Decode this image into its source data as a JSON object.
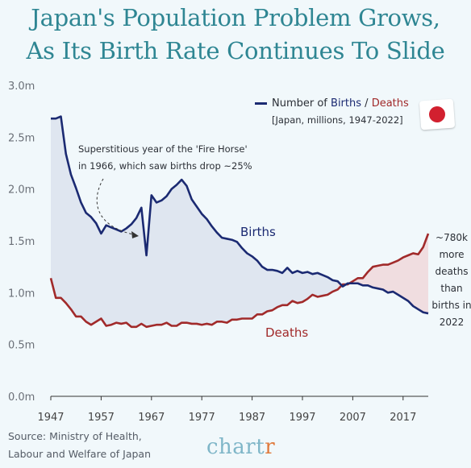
{
  "title": {
    "line1": "Japan's Population Problem Grows,",
    "line2": "As Its Birth Rate Continues To Slide"
  },
  "legend": {
    "prefix": "Number of ",
    "births_word": "Births",
    "separator": " / ",
    "deaths_word": "Deaths",
    "subtitle": "[Japan, millions, 1947-2022]",
    "flag_icon": "japan-flag-icon"
  },
  "annotations": {
    "fire_horse_line1": "Superstitious year of the 'Fire Horse'",
    "fire_horse_line2": "in 1966, which saw births drop ~25%",
    "births_label": "Births",
    "deaths_label": "Deaths",
    "gap_lines": [
      "~780k",
      "more",
      "deaths",
      "than",
      "births in",
      "2022"
    ]
  },
  "source": {
    "line1": "Source: Ministry of Health,",
    "line2": "Labour and Welfare of Japan"
  },
  "brand": {
    "before": "chart",
    "accent": "r"
  },
  "colors": {
    "births": "#1b2a72",
    "deaths": "#a12a2a",
    "births_fill": "#dfe6f0",
    "deaths_fill": "#f0dde0",
    "title": "#2f8693",
    "background": "#f1f8fb"
  },
  "chart_data": {
    "type": "line",
    "title": "Japan's Population Problem Grows, As Its Birth Rate Continues To Slide",
    "subtitle": "[Japan, millions, 1947-2022]",
    "xlabel": "",
    "ylabel": "",
    "xlim": [
      1947,
      2022
    ],
    "ylim": [
      0,
      3.0
    ],
    "x_ticks": [
      1947,
      1957,
      1967,
      1977,
      1987,
      1997,
      2007,
      2017
    ],
    "y_ticks": [
      "0.0m",
      "0.5m",
      "1.0m",
      "1.5m",
      "2.0m",
      "2.5m",
      "3.0m"
    ],
    "grid": false,
    "legend_position": "top-right",
    "x": [
      1947,
      1948,
      1949,
      1950,
      1951,
      1952,
      1953,
      1954,
      1955,
      1956,
      1957,
      1958,
      1959,
      1960,
      1961,
      1962,
      1963,
      1964,
      1965,
      1966,
      1967,
      1968,
      1969,
      1970,
      1971,
      1972,
      1973,
      1974,
      1975,
      1976,
      1977,
      1978,
      1979,
      1980,
      1981,
      1982,
      1983,
      1984,
      1985,
      1986,
      1987,
      1988,
      1989,
      1990,
      1991,
      1992,
      1993,
      1994,
      1995,
      1996,
      1997,
      1998,
      1999,
      2000,
      2001,
      2002,
      2003,
      2004,
      2005,
      2006,
      2007,
      2008,
      2009,
      2010,
      2011,
      2012,
      2013,
      2014,
      2015,
      2016,
      2017,
      2018,
      2019,
      2020,
      2021,
      2022
    ],
    "series": [
      {
        "name": "Births",
        "values": [
          2.68,
          2.68,
          2.7,
          2.34,
          2.14,
          2.01,
          1.87,
          1.77,
          1.73,
          1.67,
          1.57,
          1.65,
          1.63,
          1.61,
          1.59,
          1.62,
          1.66,
          1.72,
          1.82,
          1.36,
          1.94,
          1.87,
          1.89,
          1.93,
          2.0,
          2.04,
          2.09,
          2.03,
          1.9,
          1.83,
          1.76,
          1.71,
          1.64,
          1.58,
          1.53,
          1.52,
          1.51,
          1.49,
          1.43,
          1.38,
          1.35,
          1.31,
          1.25,
          1.22,
          1.22,
          1.21,
          1.19,
          1.24,
          1.19,
          1.21,
          1.19,
          1.2,
          1.18,
          1.19,
          1.17,
          1.15,
          1.12,
          1.11,
          1.06,
          1.09,
          1.09,
          1.09,
          1.07,
          1.07,
          1.05,
          1.04,
          1.03,
          1.0,
          1.01,
          0.98,
          0.95,
          0.92,
          0.87,
          0.84,
          0.81,
          0.8
        ]
      },
      {
        "name": "Deaths",
        "values": [
          1.14,
          0.95,
          0.95,
          0.9,
          0.84,
          0.77,
          0.77,
          0.72,
          0.69,
          0.72,
          0.75,
          0.68,
          0.69,
          0.71,
          0.7,
          0.71,
          0.67,
          0.67,
          0.7,
          0.67,
          0.68,
          0.69,
          0.69,
          0.71,
          0.68,
          0.68,
          0.71,
          0.71,
          0.7,
          0.7,
          0.69,
          0.7,
          0.69,
          0.72,
          0.72,
          0.71,
          0.74,
          0.74,
          0.75,
          0.75,
          0.75,
          0.79,
          0.79,
          0.82,
          0.83,
          0.86,
          0.88,
          0.88,
          0.92,
          0.9,
          0.91,
          0.94,
          0.98,
          0.96,
          0.97,
          0.98,
          1.01,
          1.03,
          1.08,
          1.08,
          1.11,
          1.14,
          1.14,
          1.2,
          1.25,
          1.26,
          1.27,
          1.27,
          1.29,
          1.31,
          1.34,
          1.36,
          1.38,
          1.37,
          1.44,
          1.57
        ]
      }
    ]
  }
}
